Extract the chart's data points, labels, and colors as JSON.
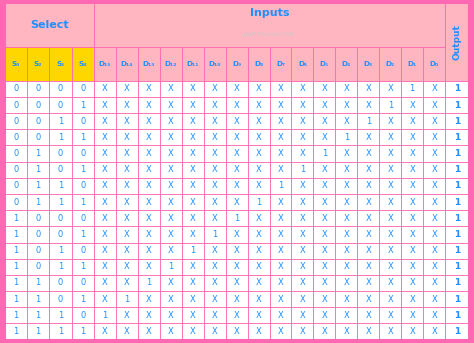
{
  "title_select": "Select",
  "title_inputs": "Inputs",
  "title_output": "Output",
  "watermark": "WWW.ETechnoG.COM",
  "rows": [
    [
      "0",
      "0",
      "0",
      "0",
      "X",
      "X",
      "X",
      "X",
      "X",
      "X",
      "X",
      "X",
      "X",
      "X",
      "X",
      "X",
      "X",
      "X",
      "1",
      "X"
    ],
    [
      "0",
      "0",
      "0",
      "1",
      "X",
      "X",
      "X",
      "X",
      "X",
      "X",
      "X",
      "X",
      "X",
      "X",
      "X",
      "X",
      "X",
      "1",
      "X",
      "X"
    ],
    [
      "0",
      "0",
      "1",
      "0",
      "X",
      "X",
      "X",
      "X",
      "X",
      "X",
      "X",
      "X",
      "X",
      "X",
      "X",
      "X",
      "1",
      "X",
      "X",
      "X"
    ],
    [
      "0",
      "0",
      "1",
      "1",
      "X",
      "X",
      "X",
      "X",
      "X",
      "X",
      "X",
      "X",
      "X",
      "X",
      "X",
      "1",
      "X",
      "X",
      "X",
      "X"
    ],
    [
      "0",
      "1",
      "0",
      "0",
      "X",
      "X",
      "X",
      "X",
      "X",
      "X",
      "X",
      "X",
      "X",
      "X",
      "1",
      "X",
      "X",
      "X",
      "X",
      "X"
    ],
    [
      "0",
      "1",
      "0",
      "1",
      "X",
      "X",
      "X",
      "X",
      "X",
      "X",
      "X",
      "X",
      "X",
      "1",
      "X",
      "X",
      "X",
      "X",
      "X",
      "X"
    ],
    [
      "0",
      "1",
      "1",
      "0",
      "X",
      "X",
      "X",
      "X",
      "X",
      "X",
      "X",
      "X",
      "1",
      "X",
      "X",
      "X",
      "X",
      "X",
      "X",
      "X"
    ],
    [
      "0",
      "1",
      "1",
      "1",
      "X",
      "X",
      "X",
      "X",
      "X",
      "X",
      "X",
      "1",
      "X",
      "X",
      "X",
      "X",
      "X",
      "X",
      "X",
      "X"
    ],
    [
      "1",
      "0",
      "0",
      "0",
      "X",
      "X",
      "X",
      "X",
      "X",
      "X",
      "1",
      "X",
      "X",
      "X",
      "X",
      "X",
      "X",
      "X",
      "X",
      "X"
    ],
    [
      "1",
      "0",
      "0",
      "1",
      "X",
      "X",
      "X",
      "X",
      "X",
      "1",
      "X",
      "X",
      "X",
      "X",
      "X",
      "X",
      "X",
      "X",
      "X",
      "X"
    ],
    [
      "1",
      "0",
      "1",
      "0",
      "X",
      "X",
      "X",
      "X",
      "1",
      "X",
      "X",
      "X",
      "X",
      "X",
      "X",
      "X",
      "X",
      "X",
      "X",
      "X"
    ],
    [
      "1",
      "0",
      "1",
      "1",
      "X",
      "X",
      "X",
      "1",
      "X",
      "X",
      "X",
      "X",
      "X",
      "X",
      "X",
      "X",
      "X",
      "X",
      "X",
      "X"
    ],
    [
      "1",
      "1",
      "0",
      "0",
      "X",
      "X",
      "1",
      "X",
      "X",
      "X",
      "X",
      "X",
      "X",
      "X",
      "X",
      "X",
      "X",
      "X",
      "X",
      "X"
    ],
    [
      "1",
      "1",
      "0",
      "1",
      "X",
      "1",
      "X",
      "X",
      "X",
      "X",
      "X",
      "X",
      "X",
      "X",
      "X",
      "X",
      "X",
      "X",
      "X",
      "X"
    ],
    [
      "1",
      "1",
      "1",
      "0",
      "1",
      "X",
      "X",
      "X",
      "X",
      "X",
      "X",
      "X",
      "X",
      "X",
      "X",
      "X",
      "X",
      "X",
      "X",
      "X"
    ],
    [
      "1",
      "1",
      "1",
      "1",
      "X",
      "X",
      "X",
      "X",
      "X",
      "X",
      "X",
      "X",
      "X",
      "X",
      "X",
      "X",
      "X",
      "X",
      "X",
      "X"
    ]
  ],
  "output_values": [
    "1",
    "1",
    "1",
    "1",
    "1",
    "1",
    "1",
    "1",
    "1",
    "1",
    "1",
    "1",
    "1",
    "1",
    "1",
    "1"
  ],
  "bg_outer": "#FF69B4",
  "bg_color": "#FFFFFF",
  "border_color": "#FF69B4",
  "header_top_bg": "#FFB6C1",
  "header_sub_bg_select": "#FFD700",
  "header_sub_bg_inputs": "#FFB6C1",
  "header_sub_bg_output": "#FFB6C1",
  "cell_bg_white": "#FFFFFF",
  "text_color_blue": "#1E90FF",
  "output_col_bg": "#FFB6C1",
  "output_text_color": "#1E90FF",
  "watermark_color": "#C8C8C8"
}
